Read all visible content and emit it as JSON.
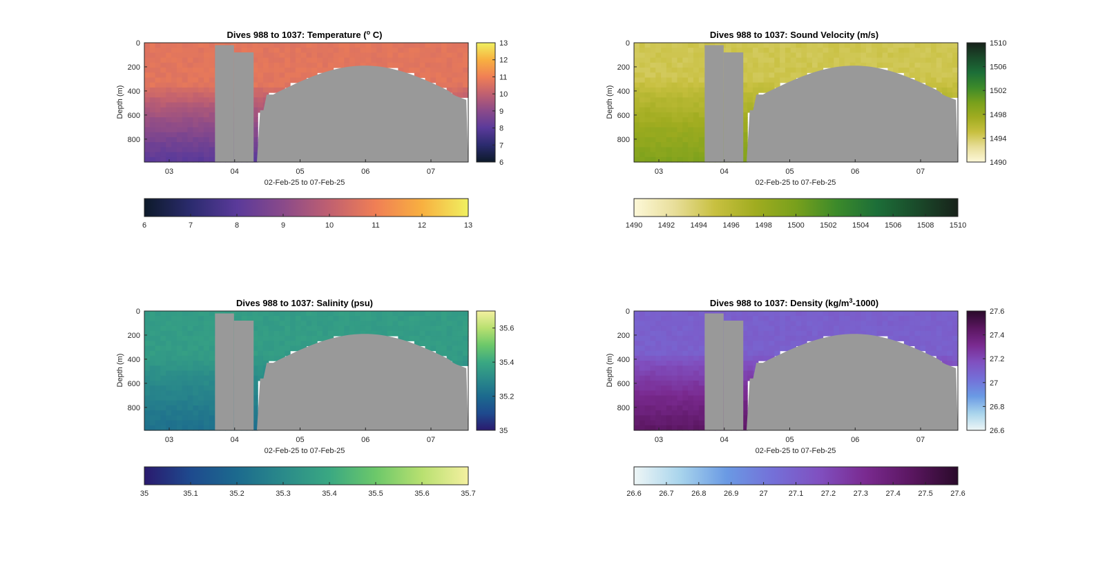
{
  "figure": {
    "x_range_label": "02-Feb-25 to 07-Feb-25",
    "ylabel": "Depth (m)",
    "no_data_color": "#999999"
  },
  "chart_data": [
    {
      "type": "heatmap",
      "title": "Dives 988 to 1037: Temperature (",
      "title_sup": "o",
      "title_tail": " C)",
      "xlabel": "02-Feb-25 to 07-Feb-25",
      "ylabel": "Depth (m)",
      "x_range_days": [
        2.62,
        7.57
      ],
      "xticks": [
        3,
        4,
        5,
        6,
        7
      ],
      "xtick_labels": [
        "03",
        "04",
        "05",
        "06",
        "07"
      ],
      "ylim": [
        0,
        990
      ],
      "yticks": [
        0,
        200,
        400,
        600,
        800
      ],
      "yreverse": true,
      "colorbar": {
        "range": [
          6,
          13
        ],
        "ticks": [
          6,
          7,
          8,
          9,
          10,
          11,
          12,
          13
        ],
        "tick_labels": [
          "6",
          "7",
          "8",
          "9",
          "10",
          "11",
          "12",
          "13"
        ],
        "colors": [
          "#0d1a2a",
          "#2b2b6e",
          "#5a3a9a",
          "#8a4a8a",
          "#c06070",
          "#f07f55",
          "#f8b040",
          "#f0f060"
        ]
      },
      "surface_value": 10.7,
      "deep_value": 8.0,
      "mix_depth": 350
    },
    {
      "type": "heatmap",
      "title": "Dives 988 to 1037: Sound Velocity (m/s)",
      "title_sup": "",
      "title_tail": "",
      "xlabel": "02-Feb-25 to 07-Feb-25",
      "ylabel": "Depth (m)",
      "x_range_days": [
        2.62,
        7.57
      ],
      "xticks": [
        3,
        4,
        5,
        6,
        7
      ],
      "xtick_labels": [
        "03",
        "04",
        "05",
        "06",
        "07"
      ],
      "ylim": [
        0,
        990
      ],
      "yticks": [
        0,
        200,
        400,
        600,
        800
      ],
      "yreverse": true,
      "colorbar": {
        "range": [
          1490,
          1510
        ],
        "ticks": [
          1490,
          1492,
          1494,
          1496,
          1498,
          1500,
          1502,
          1504,
          1506,
          1508,
          1510
        ],
        "tick_labels": [
          "1490",
          "1492",
          "1494",
          "1496",
          "1498",
          "1500",
          "1502",
          "1504",
          "1506",
          "1508",
          "1510"
        ],
        "colors": [
          "#fdf8d8",
          "#e8de9a",
          "#c8c040",
          "#a0ac20",
          "#78a01c",
          "#3c8a2a",
          "#1c6e38",
          "#1a4a2a",
          "#18221a"
        ]
      },
      "surface_value": 1494.5,
      "deep_value": 1499.5,
      "mix_depth": 300
    },
    {
      "type": "heatmap",
      "title": "Dives 988 to 1037: Salinity (psu)",
      "title_sup": "",
      "title_tail": "",
      "xlabel": "02-Feb-25 to 07-Feb-25",
      "ylabel": "Depth (m)",
      "x_range_days": [
        2.62,
        7.57
      ],
      "xticks": [
        3,
        4,
        5,
        6,
        7
      ],
      "xtick_labels": [
        "03",
        "04",
        "05",
        "06",
        "07"
      ],
      "ylim": [
        0,
        990
      ],
      "yticks": [
        0,
        200,
        400,
        600,
        800
      ],
      "yreverse": true,
      "colorbar": {
        "range": [
          35,
          35.7
        ],
        "ticks": [
          35,
          35.1,
          35.2,
          35.3,
          35.4,
          35.5,
          35.6,
          35.7
        ],
        "tick_labels": [
          "35",
          "35.1",
          "35.2",
          "35.3",
          "35.4",
          "35.5",
          "35.6",
          "35.7"
        ],
        "colors": [
          "#2a1a6e",
          "#1e4a8e",
          "#1c6a8e",
          "#2a8a8a",
          "#3aa882",
          "#6cc86a",
          "#b8e070",
          "#f4f0a0"
        ]
      },
      "surface_value": 35.36,
      "deep_value": 35.22,
      "mix_depth": 380
    },
    {
      "type": "heatmap",
      "title": "Dives 988 to 1037: Density (kg/m",
      "title_sup": "3",
      "title_tail": "-1000)",
      "xlabel": "02-Feb-25 to 07-Feb-25",
      "ylabel": "Depth (m)",
      "x_range_days": [
        2.62,
        7.57
      ],
      "xticks": [
        3,
        4,
        5,
        6,
        7
      ],
      "xtick_labels": [
        "03",
        "04",
        "05",
        "06",
        "07"
      ],
      "ylim": [
        0,
        990
      ],
      "yticks": [
        0,
        200,
        400,
        600,
        800
      ],
      "yreverse": true,
      "colorbar": {
        "range": [
          26.6,
          27.6
        ],
        "ticks": [
          26.6,
          26.7,
          26.8,
          26.9,
          27,
          27.1,
          27.2,
          27.3,
          27.4,
          27.5,
          27.6
        ],
        "tick_labels": [
          "26.6",
          "26.7",
          "26.8",
          "26.9",
          "27",
          "27.1",
          "27.2",
          "27.3",
          "27.4",
          "27.5",
          "27.6"
        ],
        "colors": [
          "#eef6f6",
          "#a8d4ec",
          "#6a9ae4",
          "#7470d8",
          "#8050c0",
          "#7a2a90",
          "#5a1660",
          "#2a0a2a"
        ]
      },
      "surface_value": 27.1,
      "deep_value": 27.45,
      "mix_depth": 350
    }
  ]
}
